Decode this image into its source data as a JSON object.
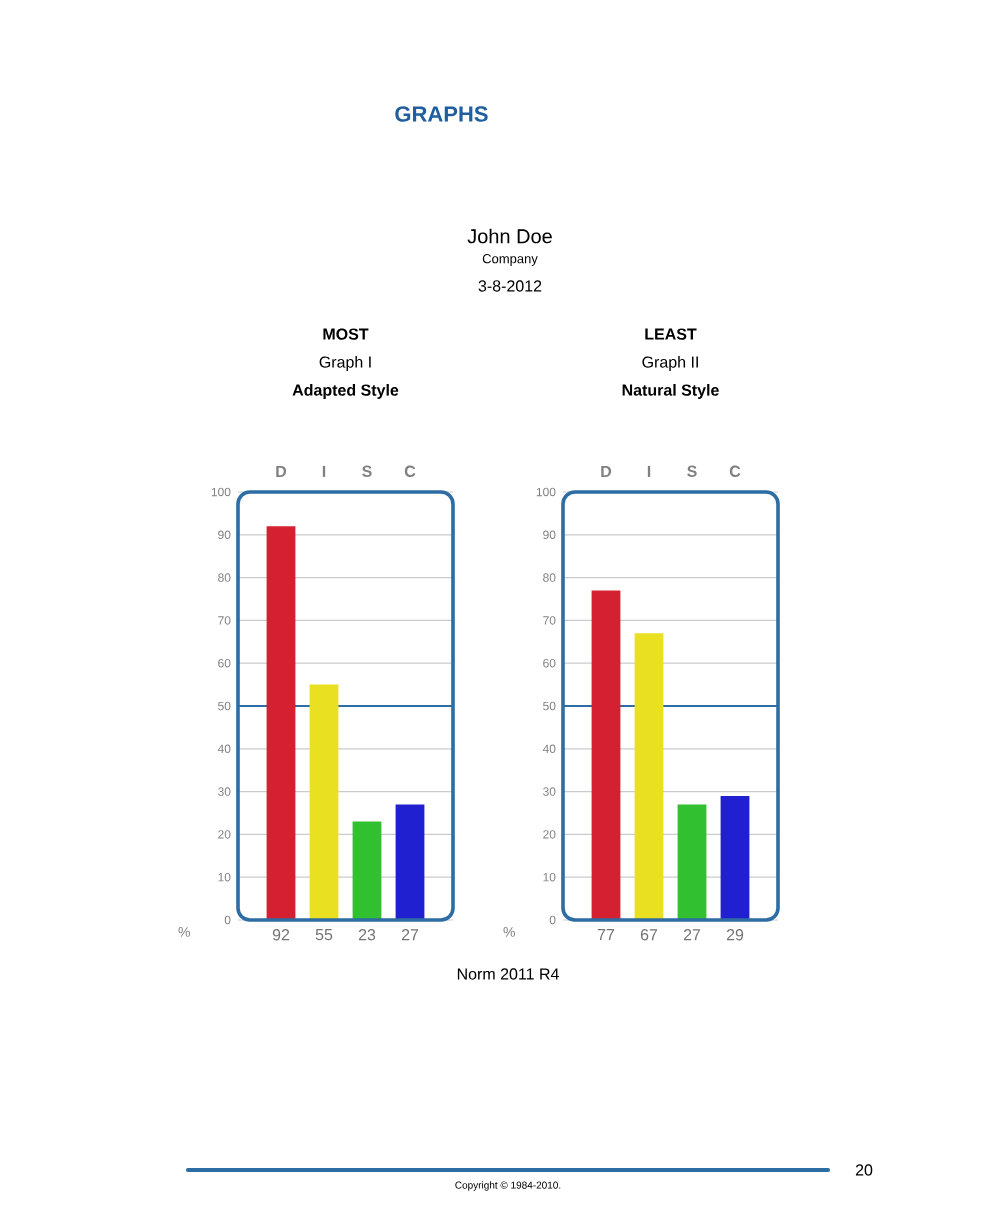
{
  "chart_data": [
    {
      "type": "bar",
      "title": "MOST",
      "subtitle": "Graph I",
      "ylabel": "%",
      "categories": [
        "D",
        "I",
        "S",
        "C"
      ],
      "values": [
        92,
        55,
        23,
        27
      ],
      "colors": [
        "#d42030",
        "#e8e020",
        "#30c030",
        "#2020d0"
      ],
      "ylim": [
        0,
        100
      ],
      "yticks": [
        0,
        10,
        20,
        30,
        40,
        50,
        60,
        70,
        80,
        90,
        100
      ],
      "grid": "y",
      "data_labels": true,
      "ref_lines": [
        {
          "axis": "y",
          "value": 50,
          "color": "#2e6da4"
        }
      ],
      "annotations": [
        "Adapted Style",
        "GRAPHS",
        "John Doe",
        "Company",
        "3-8-2012",
        "Norm 2011 R4",
        "Copyright © 1984-2010.",
        "20"
      ]
    },
    {
      "type": "bar",
      "title": "LEAST",
      "subtitle": "Graph II",
      "ylabel": "%",
      "categories": [
        "D",
        "I",
        "S",
        "C"
      ],
      "values": [
        77,
        67,
        27,
        29
      ],
      "colors": [
        "#d42030",
        "#e8e020",
        "#30c030",
        "#2020d0"
      ],
      "ylim": [
        0,
        100
      ],
      "yticks": [
        0,
        10,
        20,
        30,
        40,
        50,
        60,
        70,
        80,
        90,
        100
      ],
      "grid": "y",
      "data_labels": true,
      "ref_lines": [
        {
          "axis": "y",
          "value": 50,
          "color": "#2e6da4"
        }
      ],
      "annotations": [
        "Natural Style"
      ]
    }
  ]
}
